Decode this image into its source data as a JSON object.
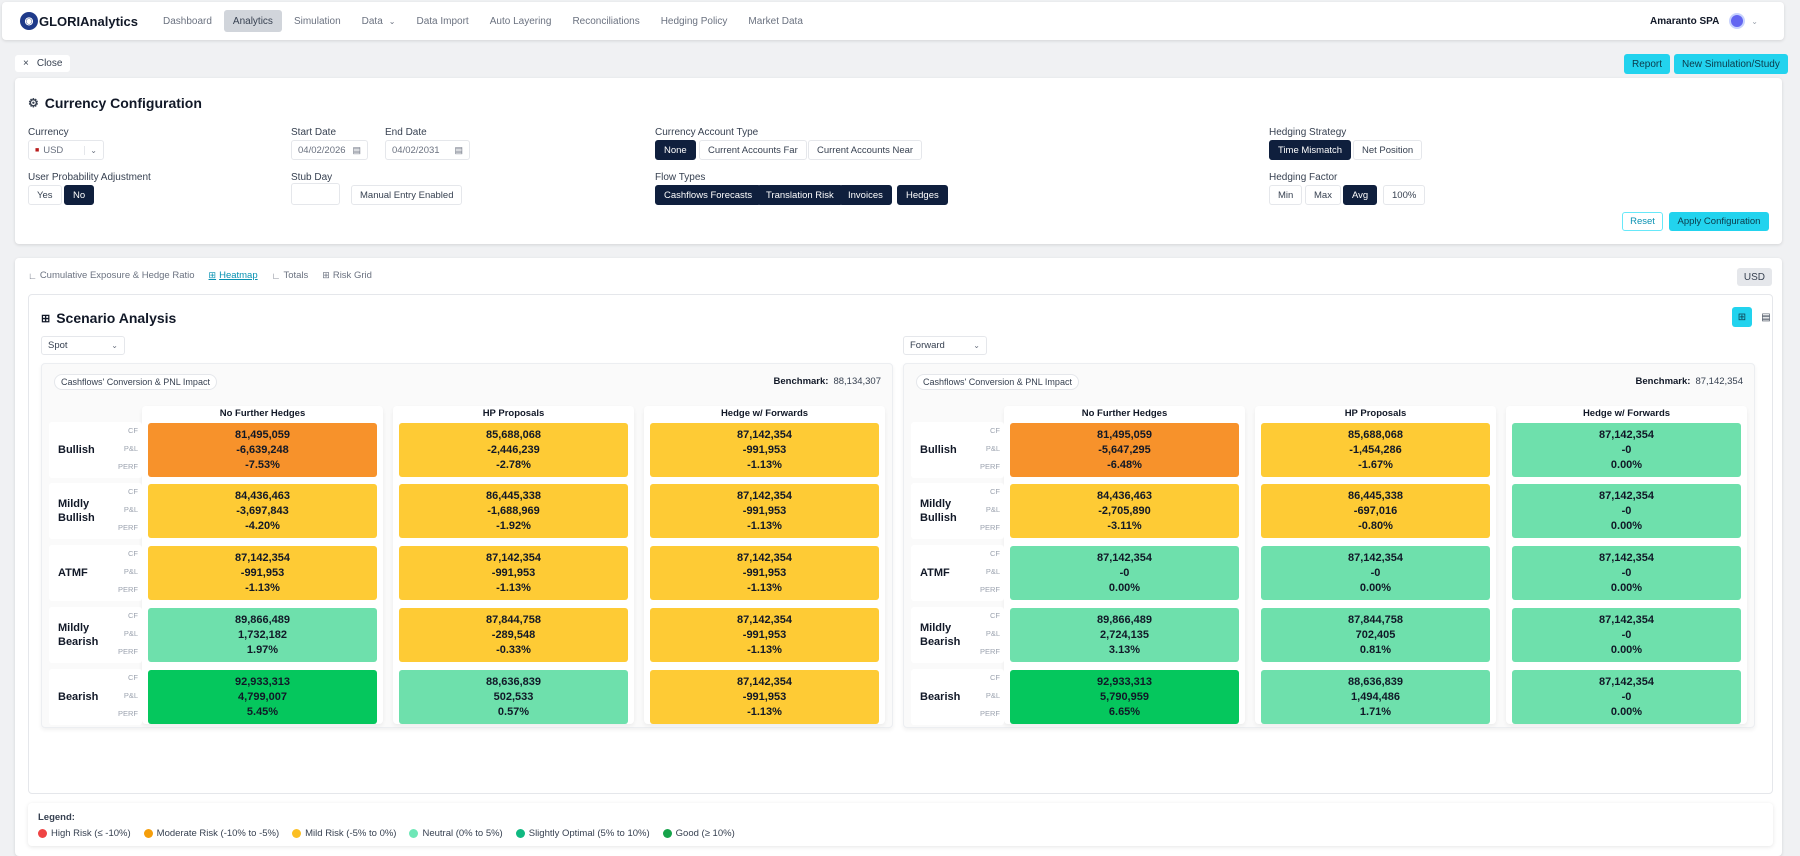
{
  "brand": {
    "name": "GLORIAnalytics",
    "logo_icon": "globe-icon"
  },
  "nav": [
    {
      "label": "Dashboard",
      "active": false
    },
    {
      "label": "Analytics",
      "active": true
    },
    {
      "label": "Simulation",
      "active": false
    },
    {
      "label": "Data",
      "active": false,
      "dropdown": true
    },
    {
      "label": "Data Import",
      "active": false
    },
    {
      "label": "Auto Layering",
      "active": false
    },
    {
      "label": "Reconciliations",
      "active": false
    },
    {
      "label": "Hedging Policy",
      "active": false
    },
    {
      "label": "Market Data",
      "active": false
    }
  ],
  "user": {
    "name": "Amaranto SPA"
  },
  "actions": {
    "close": "Close",
    "report": "Report",
    "new_sim": "New Simulation/Study"
  },
  "config": {
    "title": "Currency Configuration",
    "currency": {
      "label": "Currency",
      "value": "USD"
    },
    "start_date": {
      "label": "Start Date",
      "value": "04/02/2026"
    },
    "end_date": {
      "label": "End Date",
      "value": "04/02/2031"
    },
    "account_type": {
      "label": "Currency Account Type",
      "options": [
        "None",
        "Current Accounts Far",
        "Current Accounts Near"
      ],
      "selected": "None"
    },
    "hedging_strategy": {
      "label": "Hedging Strategy",
      "options": [
        "Time Mismatch",
        "Net Position"
      ],
      "selected": "Time Mismatch"
    },
    "user_prob": {
      "label": "User Probability Adjustment",
      "options": [
        "Yes",
        "No"
      ],
      "selected": "No"
    },
    "stub_day": {
      "label": "Stub Day",
      "value": "",
      "manual": "Manual Entry Enabled"
    },
    "flow_types": {
      "label": "Flow Types",
      "options": [
        "Cashflows Forecasts",
        "Translation Risk",
        "Invoices",
        "Hedges"
      ]
    },
    "hedging_factor": {
      "label": "Hedging Factor",
      "options": [
        "Min",
        "Max",
        "Avg",
        "100%"
      ],
      "selected": "Avg"
    },
    "reset": "Reset",
    "apply": "Apply Configuration"
  },
  "tabs": [
    {
      "label": "Cumulative Exposure & Hedge Ratio",
      "icon": "line-chart-icon",
      "active": false
    },
    {
      "label": "Heatmap",
      "icon": "grid-icon",
      "active": true
    },
    {
      "label": "Totals",
      "icon": "bar-chart-icon",
      "active": false
    },
    {
      "label": "Risk Grid",
      "icon": "grid-icon",
      "active": false
    }
  ],
  "currency_badge": "USD",
  "scenario": {
    "title": "Scenario Analysis",
    "columns": [
      "No Further Hedges",
      "HP Proposals",
      "Hedge w/ Forwards"
    ],
    "rows": [
      "Bullish",
      "Mildly Bullish",
      "ATMF",
      "Mildly Bearish",
      "Bearish"
    ],
    "row_labels": [
      "CF",
      "P&L",
      "PERF"
    ],
    "panels": [
      {
        "selector": "Spot",
        "tag": "Cashflows' Conversion & PNL Impact",
        "benchmark_label": "Benchmark:",
        "benchmark": "88,134,307",
        "cells": [
          [
            {
              "cf": "81,495,059",
              "pl": "-6,639,248",
              "perf": "-7.53%",
              "level": "moderate"
            },
            {
              "cf": "85,688,068",
              "pl": "-2,446,239",
              "perf": "-2.78%",
              "level": "mild"
            },
            {
              "cf": "87,142,354",
              "pl": "-991,953",
              "perf": "-1.13%",
              "level": "mild"
            }
          ],
          [
            {
              "cf": "84,436,463",
              "pl": "-3,697,843",
              "perf": "-4.20%",
              "level": "mild"
            },
            {
              "cf": "86,445,338",
              "pl": "-1,688,969",
              "perf": "-1.92%",
              "level": "mild"
            },
            {
              "cf": "87,142,354",
              "pl": "-991,953",
              "perf": "-1.13%",
              "level": "mild"
            }
          ],
          [
            {
              "cf": "87,142,354",
              "pl": "-991,953",
              "perf": "-1.13%",
              "level": "mild"
            },
            {
              "cf": "87,142,354",
              "pl": "-991,953",
              "perf": "-1.13%",
              "level": "mild"
            },
            {
              "cf": "87,142,354",
              "pl": "-991,953",
              "perf": "-1.13%",
              "level": "mild"
            }
          ],
          [
            {
              "cf": "89,866,489",
              "pl": "1,732,182",
              "perf": "1.97%",
              "level": "neutral"
            },
            {
              "cf": "87,844,758",
              "pl": "-289,548",
              "perf": "-0.33%",
              "level": "mild"
            },
            {
              "cf": "87,142,354",
              "pl": "-991,953",
              "perf": "-1.13%",
              "level": "mild"
            }
          ],
          [
            {
              "cf": "92,933,313",
              "pl": "4,799,007",
              "perf": "5.45%",
              "level": "slightly"
            },
            {
              "cf": "88,636,839",
              "pl": "502,533",
              "perf": "0.57%",
              "level": "neutral"
            },
            {
              "cf": "87,142,354",
              "pl": "-991,953",
              "perf": "-1.13%",
              "level": "mild"
            }
          ]
        ]
      },
      {
        "selector": "Forward",
        "tag": "Cashflows' Conversion & PNL Impact",
        "benchmark_label": "Benchmark:",
        "benchmark": "87,142,354",
        "cells": [
          [
            {
              "cf": "81,495,059",
              "pl": "-5,647,295",
              "perf": "-6.48%",
              "level": "moderate"
            },
            {
              "cf": "85,688,068",
              "pl": "-1,454,286",
              "perf": "-1.67%",
              "level": "mild"
            },
            {
              "cf": "87,142,354",
              "pl": "-0",
              "perf": "0.00%",
              "level": "neutral"
            }
          ],
          [
            {
              "cf": "84,436,463",
              "pl": "-2,705,890",
              "perf": "-3.11%",
              "level": "mild"
            },
            {
              "cf": "86,445,338",
              "pl": "-697,016",
              "perf": "-0.80%",
              "level": "mild"
            },
            {
              "cf": "87,142,354",
              "pl": "-0",
              "perf": "0.00%",
              "level": "neutral"
            }
          ],
          [
            {
              "cf": "87,142,354",
              "pl": "-0",
              "perf": "0.00%",
              "level": "neutral"
            },
            {
              "cf": "87,142,354",
              "pl": "-0",
              "perf": "0.00%",
              "level": "neutral"
            },
            {
              "cf": "87,142,354",
              "pl": "-0",
              "perf": "0.00%",
              "level": "neutral"
            }
          ],
          [
            {
              "cf": "89,866,489",
              "pl": "2,724,135",
              "perf": "3.13%",
              "level": "neutral"
            },
            {
              "cf": "87,844,758",
              "pl": "702,405",
              "perf": "0.81%",
              "level": "neutral"
            },
            {
              "cf": "87,142,354",
              "pl": "-0",
              "perf": "0.00%",
              "level": "neutral"
            }
          ],
          [
            {
              "cf": "92,933,313",
              "pl": "5,790,959",
              "perf": "6.65%",
              "level": "slightly"
            },
            {
              "cf": "88,636,839",
              "pl": "1,494,486",
              "perf": "1.71%",
              "level": "neutral"
            },
            {
              "cf": "87,142,354",
              "pl": "-0",
              "perf": "0.00%",
              "level": "neutral"
            }
          ]
        ]
      }
    ]
  },
  "legend": {
    "title": "Legend:",
    "items": [
      {
        "label": "High Risk (≤ -10%)",
        "color": "#ef4444"
      },
      {
        "label": "Moderate Risk (-10% to -5%)",
        "color": "#f59e0b"
      },
      {
        "label": "Mild Risk (-5% to 0%)",
        "color": "#fbbf24"
      },
      {
        "label": "Neutral (0% to 5%)",
        "color": "#6ee7b7"
      },
      {
        "label": "Slightly Optimal (5% to 10%)",
        "color": "#10b981"
      },
      {
        "label": "Good (≥ 10%)",
        "color": "#16a34a"
      }
    ]
  },
  "cell_colors": {
    "moderate": "#f7922b",
    "mild": "#fecb35",
    "neutral": "#6ee0ac",
    "slightly": "#05c75d"
  }
}
